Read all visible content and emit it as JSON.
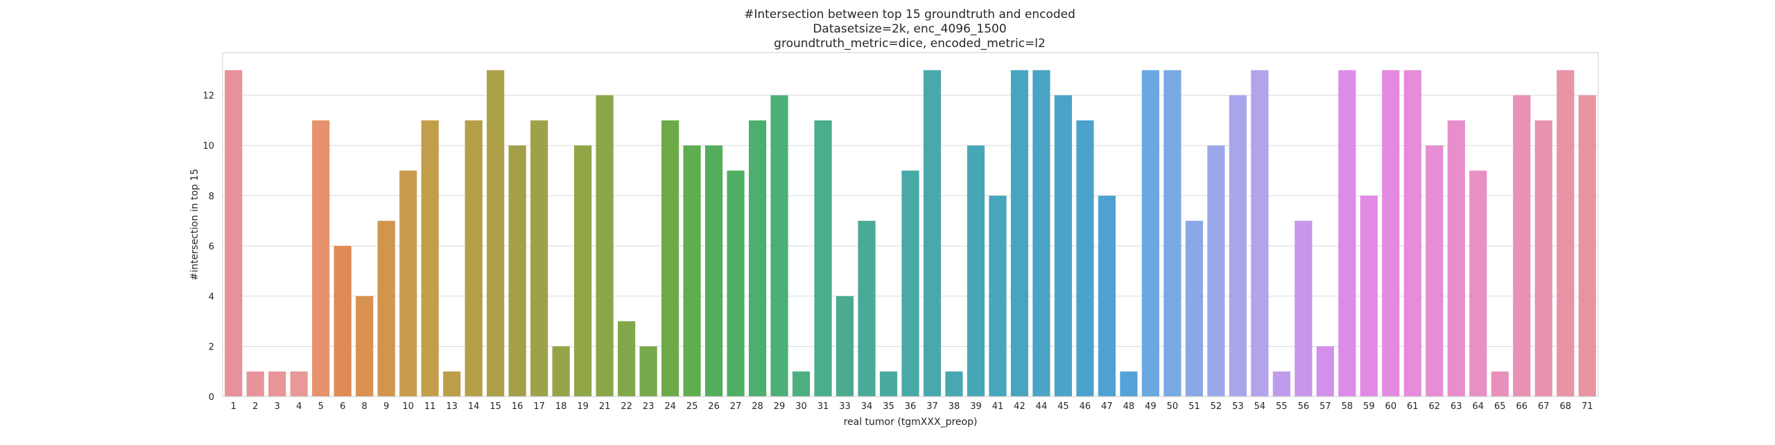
{
  "chart_data": {
    "type": "bar",
    "title": [
      "#Intersection between top 15 groundtruth and encoded",
      "Datasetsize=2k, enc_4096_1500",
      "groundtruth_metric=dice, encoded_metric=l2"
    ],
    "xlabel": "real tumor (tgmXXX_preop)",
    "ylabel": "#intersection in top 15",
    "ylim": [
      0,
      13.7
    ],
    "yticks": [
      0,
      2,
      4,
      6,
      8,
      10,
      12
    ],
    "grid": "horizontal",
    "categories": [
      "1",
      "2",
      "3",
      "4",
      "5",
      "6",
      "8",
      "9",
      "10",
      "11",
      "13",
      "14",
      "15",
      "16",
      "17",
      "18",
      "19",
      "21",
      "22",
      "23",
      "24",
      "25",
      "26",
      "27",
      "28",
      "29",
      "30",
      "31",
      "33",
      "34",
      "35",
      "36",
      "37",
      "38",
      "39",
      "41",
      "42",
      "44",
      "45",
      "46",
      "47",
      "48",
      "49",
      "50",
      "51",
      "52",
      "53",
      "54",
      "55",
      "56",
      "57",
      "58",
      "59",
      "60",
      "61",
      "62",
      "63",
      "64",
      "65",
      "66",
      "67",
      "68",
      "71"
    ],
    "values": [
      13,
      1,
      1,
      1,
      11,
      6,
      4,
      7,
      9,
      11,
      1,
      11,
      13,
      10,
      11,
      2,
      10,
      12,
      3,
      2,
      11,
      10,
      10,
      9,
      11,
      12,
      1,
      11,
      4,
      7,
      1,
      9,
      13,
      1,
      10,
      8,
      13,
      13,
      12,
      11,
      8,
      1,
      13,
      13,
      7,
      10,
      12,
      13,
      1,
      7,
      2,
      13,
      8,
      13,
      13,
      10,
      11,
      9,
      1,
      12,
      11,
      13,
      12
    ],
    "colors": [
      "#e8909b",
      "#e8939a",
      "#e79598",
      "#e69996",
      "#e6926e",
      "#e28a55",
      "#d9914f",
      "#d0964c",
      "#c99c4d",
      "#c29e4b",
      "#bb9e47",
      "#b49f48",
      "#aba048",
      "#a4a04a",
      "#9da249",
      "#97a348",
      "#91a647",
      "#8aa648",
      "#82a74a",
      "#78a94a",
      "#6caa47",
      "#60ad4f",
      "#54ad5a",
      "#4eaf64",
      "#4daf6e",
      "#4daf78",
      "#4cae81",
      "#4bad89",
      "#4aab90",
      "#4aaa98",
      "#4aa99f",
      "#48a9a6",
      "#48a8ac",
      "#49a7b1",
      "#47a7b6",
      "#48a6bb",
      "#48a5c0",
      "#4aa4c5",
      "#4aa3c9",
      "#4ca2cd",
      "#4ea2d2",
      "#53a2d8",
      "#6aa9e0",
      "#78a9e3",
      "#8aa8e6",
      "#9aa8e9",
      "#a8a6ea",
      "#b4a2eb",
      "#bf9ceb",
      "#c996ea",
      "#d390e9",
      "#dc8ce8",
      "#e18ae6",
      "#e48ae0",
      "#e68cda",
      "#e78dd3",
      "#e88ecc",
      "#e88fc4",
      "#e890bc",
      "#e891b4",
      "#e892ad",
      "#e893a6",
      "#e894a0"
    ]
  }
}
